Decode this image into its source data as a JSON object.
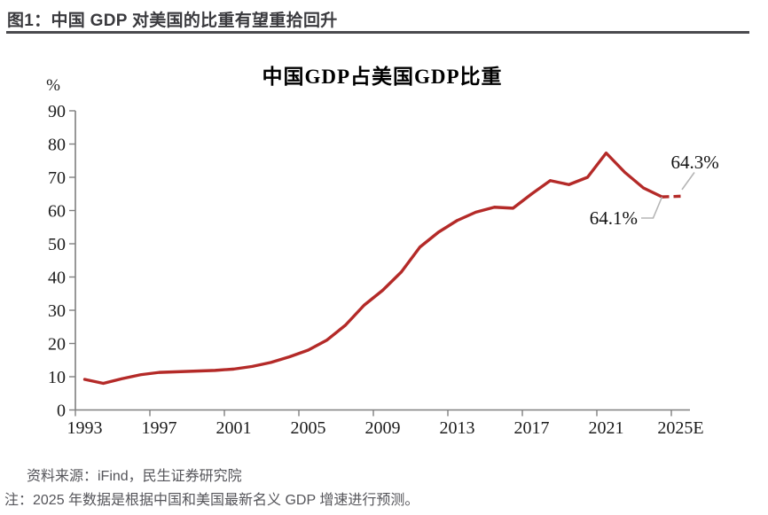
{
  "header": {
    "title": "图1：中国 GDP 对美国的比重有望重拾回升"
  },
  "chart_data": {
    "type": "line",
    "title": "中国GDP占美国GDP比重",
    "grid": false,
    "legend": "none",
    "xlim": [
      1993,
      2025
    ],
    "ylim": [
      0,
      90
    ],
    "y_axis": {
      "unit_label": "%",
      "tick_step": 10,
      "ticks": [
        0,
        10,
        20,
        30,
        40,
        50,
        60,
        70,
        80,
        90
      ]
    },
    "x_axis": {
      "ticks": [
        {
          "year": 1993,
          "label": "1993"
        },
        {
          "year": 1997,
          "label": "1997"
        },
        {
          "year": 2001,
          "label": "2001"
        },
        {
          "year": 2005,
          "label": "2005"
        },
        {
          "year": 2009,
          "label": "2009"
        },
        {
          "year": 2013,
          "label": "2013"
        },
        {
          "year": 2017,
          "label": "2017"
        },
        {
          "year": 2021,
          "label": "2021"
        },
        {
          "year": 2025,
          "label": "2025E"
        }
      ]
    },
    "series": [
      {
        "name": "中国GDP占美国GDP比重",
        "color": "#b42a28",
        "forecast_from_year": 2024,
        "forecast_style": "dashed",
        "years": [
          1993,
          1994,
          1995,
          1996,
          1997,
          1998,
          1999,
          2000,
          2001,
          2002,
          2003,
          2004,
          2005,
          2006,
          2007,
          2008,
          2009,
          2010,
          2011,
          2012,
          2013,
          2014,
          2015,
          2016,
          2017,
          2018,
          2019,
          2020,
          2021,
          2022,
          2023,
          2024,
          2025
        ],
        "values": [
          9.2,
          8.0,
          9.4,
          10.6,
          11.3,
          11.5,
          11.7,
          11.9,
          12.3,
          13.1,
          14.3,
          16.0,
          18.0,
          21.0,
          25.5,
          31.5,
          36.0,
          41.5,
          49.0,
          53.5,
          57.0,
          59.5,
          61.0,
          60.7,
          65.0,
          69.0,
          67.8,
          70.0,
          77.3,
          71.5,
          66.8,
          64.1,
          64.3
        ]
      }
    ],
    "annotations": [
      {
        "label": "64.1%",
        "year": 2024,
        "value": 64.1
      },
      {
        "label": "64.3%",
        "year": 2025,
        "value": 64.3
      }
    ]
  },
  "footer": {
    "source": "资料来源：iFind，民生证券研究院",
    "note": "注：2025 年数据是根据中国和美国最新名义 GDP 增速进行预测。"
  }
}
